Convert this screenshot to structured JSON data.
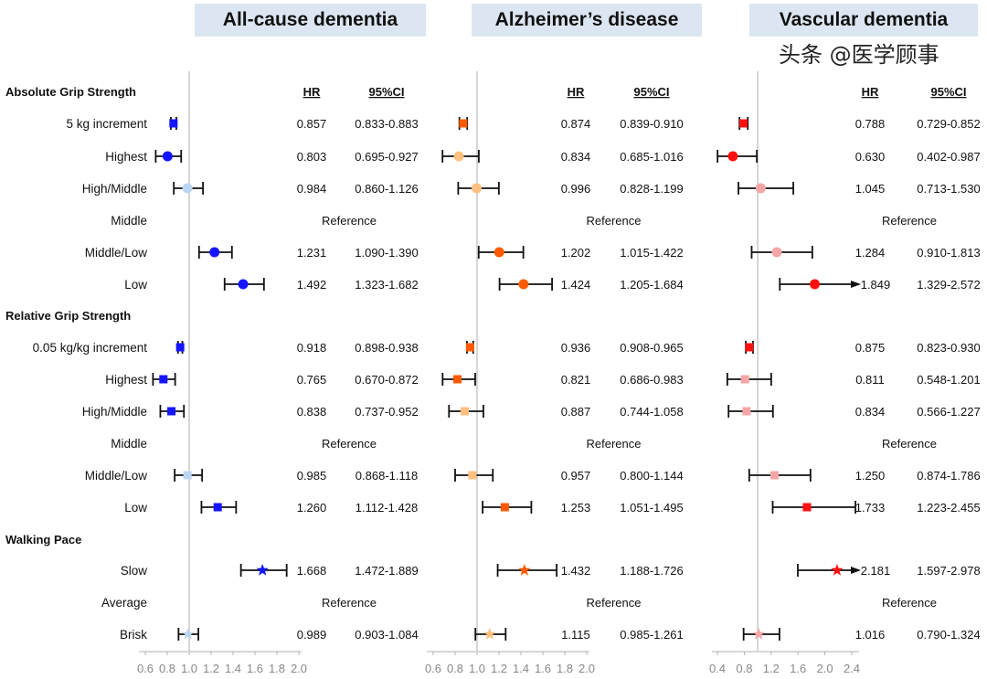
{
  "chart_data": {
    "type": "forest",
    "columns_header": {
      "hr": "HR",
      "ci": "95%CI"
    },
    "reference_label": "Reference",
    "rows": [
      {
        "label": "Absolute Grip Strength",
        "header": true
      },
      {
        "label": "5 kg increment",
        "marker": "square"
      },
      {
        "label": "Highest",
        "marker": "circle"
      },
      {
        "label": "High/Middle",
        "marker": "circle"
      },
      {
        "label": "Middle",
        "reference": true
      },
      {
        "label": "Middle/Low",
        "marker": "circle"
      },
      {
        "label": "Low",
        "marker": "circle"
      },
      {
        "label": "Relative Grip Strength",
        "header": true
      },
      {
        "label": "0.05 kg/kg increment",
        "marker": "square"
      },
      {
        "label": "Highest",
        "marker": "square"
      },
      {
        "label": "High/Middle",
        "marker": "square"
      },
      {
        "label": "Middle",
        "reference": true
      },
      {
        "label": "Middle/Low",
        "marker": "square"
      },
      {
        "label": "Low",
        "marker": "square"
      },
      {
        "label": "Walking Pace",
        "header": true
      },
      {
        "label": "Slow",
        "marker": "star"
      },
      {
        "label": "Average",
        "reference": true
      },
      {
        "label": "Brisk",
        "marker": "star"
      }
    ],
    "panels": [
      {
        "title": "All-cause dementia",
        "color": "#1414ff",
        "color_ns": "#bcd6f2",
        "xlim": [
          0.6,
          2.0
        ],
        "xticks": [
          "0.6",
          "0.8",
          "1.0",
          "1.2",
          "1.4",
          "1.6",
          "1.8",
          "2.0"
        ],
        "hr": [
          null,
          "0.857",
          "0.803",
          "0.984",
          null,
          "1.231",
          "1.492",
          null,
          "0.918",
          "0.765",
          "0.838",
          null,
          "0.985",
          "1.260",
          null,
          "1.668",
          null,
          "0.989"
        ],
        "ci": [
          null,
          "0.833-0.883",
          "0.695-0.927",
          "0.860-1.126",
          null,
          "1.090-1.390",
          "1.323-1.682",
          null,
          "0.898-0.938",
          "0.670-0.872",
          "0.737-0.952",
          null,
          "0.868-1.118",
          "1.112-1.428",
          null,
          "1.472-1.889",
          null,
          "0.903-1.084"
        ]
      },
      {
        "title": "Alzheimer’s disease",
        "color": "#ff5a00",
        "color_ns": "#ffbf80",
        "xlim": [
          0.6,
          2.0
        ],
        "xticks": [
          "0.6",
          "0.8",
          "1.0",
          "1.2",
          "1.4",
          "1.6",
          "1.8",
          "2.0"
        ],
        "hr": [
          null,
          "0.874",
          "0.834",
          "0.996",
          null,
          "1.202",
          "1.424",
          null,
          "0.936",
          "0.821",
          "0.887",
          null,
          "0.957",
          "1.253",
          null,
          "1.432",
          null,
          "1.115"
        ],
        "ci": [
          null,
          "0.839-0.910",
          "0.685-1.016",
          "0.828-1.199",
          null,
          "1.015-1.422",
          "1.205-1.684",
          null,
          "0.908-0.965",
          "0.686-0.983",
          "0.744-1.058",
          null,
          "0.800-1.144",
          "1.051-1.495",
          null,
          "1.188-1.726",
          null,
          "0.985-1.261"
        ]
      },
      {
        "title": "Vascular dementia",
        "color": "#ff1010",
        "color_ns": "#f4a6a6",
        "xlim": [
          0.4,
          2.4
        ],
        "xticks": [
          "0.4",
          "0.8",
          "1.2",
          "1.6",
          "2.0",
          "2.4"
        ],
        "hr": [
          null,
          "0.788",
          "0.630",
          "1.045",
          null,
          "1.284",
          "1.849",
          null,
          "0.875",
          "0.811",
          "0.834",
          null,
          "1.250",
          "1.733",
          null,
          "2.181",
          null,
          "1.016"
        ],
        "ci": [
          null,
          "0.729-0.852",
          "0.402-0.987",
          "0.713-1.530",
          null,
          "0.910-1.813",
          "1.329-2.572",
          null,
          "0.823-0.930",
          "0.548-1.201",
          "0.566-1.227",
          null,
          "0.874-1.786",
          "1.223-2.455",
          null,
          "1.597-2.978",
          null,
          "0.790-1.324"
        ]
      }
    ]
  },
  "watermark": "头条 @医学顾事"
}
